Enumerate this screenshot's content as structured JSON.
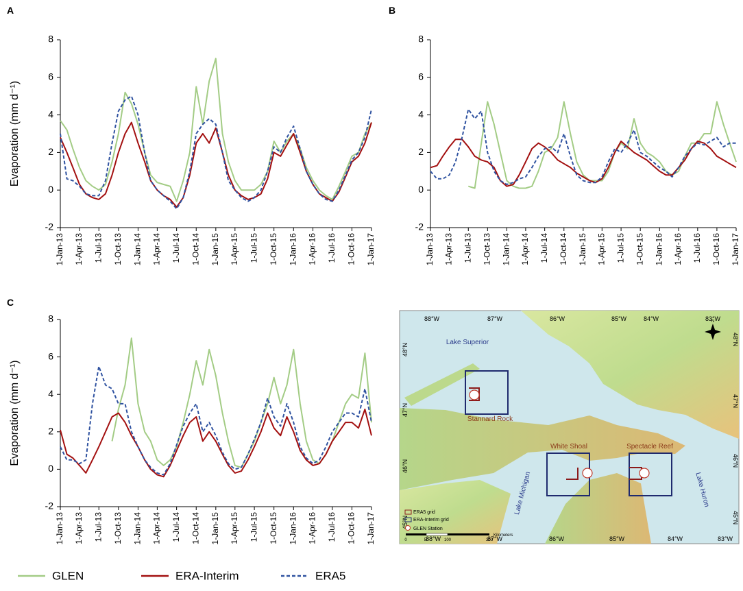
{
  "chart_data": [
    {
      "type": "line",
      "panel_label": "A",
      "ylabel": "Evaporation (mm d⁻¹)",
      "x": [
        "2013-01-01",
        "2013-02-01",
        "2013-03-01",
        "2013-04-01",
        "2013-05-01",
        "2013-06-01",
        "2013-07-01",
        "2013-08-01",
        "2013-09-01",
        "2013-10-01",
        "2013-11-01",
        "2013-12-01",
        "2014-01-01",
        "2014-02-01",
        "2014-03-01",
        "2014-04-01",
        "2014-05-01",
        "2014-06-01",
        "2014-07-01",
        "2014-08-01",
        "2014-09-01",
        "2014-10-01",
        "2014-11-01",
        "2014-12-01",
        "2015-01-01",
        "2015-02-01",
        "2015-03-01",
        "2015-04-01",
        "2015-05-01",
        "2015-06-01",
        "2015-07-01",
        "2015-08-01",
        "2015-09-01",
        "2015-10-01",
        "2015-11-01",
        "2015-12-01",
        "2016-01-01",
        "2016-02-01",
        "2016-03-01",
        "2016-04-01",
        "2016-05-01",
        "2016-06-01",
        "2016-07-01",
        "2016-08-01",
        "2016-09-01",
        "2016-10-01",
        "2016-11-01",
        "2016-12-01",
        "2017-01-01"
      ],
      "xlim": [
        "2013-01-01",
        "2017-01-01"
      ],
      "xticks": [
        {
          "value": "2013-01-01",
          "label": "1-Jan-13"
        },
        {
          "value": "2013-04-01",
          "label": "1-Apr-13"
        },
        {
          "value": "2013-07-01",
          "label": "1-Jul-13"
        },
        {
          "value": "2013-10-01",
          "label": "1-Oct-13"
        },
        {
          "value": "2014-01-01",
          "label": "1-Jan-14"
        },
        {
          "value": "2014-04-01",
          "label": "1-Apr-14"
        },
        {
          "value": "2014-07-01",
          "label": "1-Jul-14"
        },
        {
          "value": "2014-10-01",
          "label": "1-Oct-14"
        },
        {
          "value": "2015-01-01",
          "label": "1-Jan-15"
        },
        {
          "value": "2015-04-01",
          "label": "1-Apr-15"
        },
        {
          "value": "2015-07-01",
          "label": "1-Jul-15"
        },
        {
          "value": "2015-10-01",
          "label": "1-Oct-15"
        },
        {
          "value": "2016-01-01",
          "label": "1-Jan-16"
        },
        {
          "value": "2016-04-01",
          "label": "1-Apr-16"
        },
        {
          "value": "2016-07-01",
          "label": "1-Jul-16"
        },
        {
          "value": "2016-10-01",
          "label": "1-Oct-16"
        },
        {
          "value": "2017-01-01",
          "label": "1-Jan-17"
        }
      ],
      "ylim": [
        -2,
        8
      ],
      "yticks": [
        -2,
        0,
        2,
        4,
        6,
        8
      ],
      "series": [
        {
          "name": "GLEN",
          "color": "#a3cc85",
          "dash": false,
          "values": [
            3.7,
            3.2,
            2.2,
            1.2,
            0.5,
            0.2,
            0.0,
            0.3,
            1.5,
            3.0,
            5.2,
            4.6,
            3.5,
            2.0,
            0.8,
            0.4,
            0.3,
            0.2,
            -0.6,
            0.5,
            2.0,
            5.5,
            3.5,
            5.8,
            7.0,
            3.0,
            1.5,
            0.5,
            0.0,
            0.0,
            0.0,
            0.3,
            1.0,
            2.6,
            2.0,
            2.6,
            3.0,
            2.2,
            1.2,
            0.5,
            0.0,
            -0.3,
            -0.5,
            0.2,
            1.0,
            1.8,
            2.0,
            3.0,
            3.6
          ]
        },
        {
          "name": "ERA-Interim",
          "color": "#a31010",
          "dash": false,
          "values": [
            2.8,
            2.0,
            1.2,
            0.3,
            -0.2,
            -0.4,
            -0.5,
            -0.2,
            0.8,
            2.0,
            3.0,
            3.6,
            2.5,
            1.5,
            0.5,
            0.0,
            -0.3,
            -0.5,
            -0.9,
            -0.4,
            0.8,
            2.5,
            3.0,
            2.5,
            3.3,
            2.0,
            0.8,
            0.0,
            -0.3,
            -0.5,
            -0.4,
            -0.2,
            0.6,
            2.0,
            1.8,
            2.4,
            3.0,
            2.0,
            1.0,
            0.3,
            -0.2,
            -0.4,
            -0.6,
            -0.1,
            0.7,
            1.5,
            1.8,
            2.5,
            3.6
          ]
        },
        {
          "name": "ERA5",
          "color": "#2f52a0",
          "dash": true,
          "values": [
            3.0,
            0.6,
            0.5,
            0.2,
            -0.2,
            -0.3,
            -0.3,
            0.5,
            2.5,
            4.2,
            4.8,
            5.0,
            4.0,
            2.0,
            0.5,
            0.0,
            -0.3,
            -0.6,
            -1.0,
            -0.4,
            1.0,
            3.0,
            3.5,
            3.8,
            3.5,
            2.0,
            0.5,
            0.0,
            -0.4,
            -0.6,
            -0.4,
            0.0,
            1.0,
            2.3,
            2.0,
            2.8,
            3.4,
            2.2,
            1.0,
            0.3,
            -0.2,
            -0.5,
            -0.6,
            0.0,
            0.8,
            1.6,
            2.0,
            2.8,
            4.3
          ]
        }
      ]
    },
    {
      "type": "line",
      "panel_label": "B",
      "x": [
        "2013-01-01",
        "2013-02-01",
        "2013-03-01",
        "2013-04-01",
        "2013-05-01",
        "2013-06-01",
        "2013-07-01",
        "2013-08-01",
        "2013-09-01",
        "2013-10-01",
        "2013-11-01",
        "2013-12-01",
        "2014-01-01",
        "2014-02-01",
        "2014-03-01",
        "2014-04-01",
        "2014-05-01",
        "2014-06-01",
        "2014-07-01",
        "2014-08-01",
        "2014-09-01",
        "2014-10-01",
        "2014-11-01",
        "2014-12-01",
        "2015-01-01",
        "2015-02-01",
        "2015-03-01",
        "2015-04-01",
        "2015-05-01",
        "2015-06-01",
        "2015-07-01",
        "2015-08-01",
        "2015-09-01",
        "2015-10-01",
        "2015-11-01",
        "2015-12-01",
        "2016-01-01",
        "2016-02-01",
        "2016-03-01",
        "2016-04-01",
        "2016-05-01",
        "2016-06-01",
        "2016-07-01",
        "2016-08-01",
        "2016-09-01",
        "2016-10-01",
        "2016-11-01",
        "2016-12-01",
        "2017-01-01"
      ],
      "xlim": [
        "2013-01-01",
        "2017-01-01"
      ],
      "xticks": [
        {
          "value": "2013-01-01",
          "label": "1-Jan-13"
        },
        {
          "value": "2013-04-01",
          "label": "1-Apr-13"
        },
        {
          "value": "2013-07-01",
          "label": "1-Jul-13"
        },
        {
          "value": "2013-10-01",
          "label": "1-Oct-13"
        },
        {
          "value": "2014-01-01",
          "label": "1-Jan-14"
        },
        {
          "value": "2014-04-01",
          "label": "1-Apr-14"
        },
        {
          "value": "2014-07-01",
          "label": "1-Jul-14"
        },
        {
          "value": "2014-10-01",
          "label": "1-Oct-14"
        },
        {
          "value": "2015-01-01",
          "label": "1-Jan-15"
        },
        {
          "value": "2015-04-01",
          "label": "1-Apr-15"
        },
        {
          "value": "2015-07-01",
          "label": "1-Jul-15"
        },
        {
          "value": "2015-10-01",
          "label": "1-Oct-15"
        },
        {
          "value": "2016-01-01",
          "label": "1-Jan-16"
        },
        {
          "value": "2016-04-01",
          "label": "1-Apr-16"
        },
        {
          "value": "2016-07-01",
          "label": "1-Jul-16"
        },
        {
          "value": "2016-10-01",
          "label": "1-Oct-16"
        },
        {
          "value": "2017-01-01",
          "label": "1-Jan-17"
        }
      ],
      "ylim": [
        -2,
        8
      ],
      "yticks": [
        -2,
        0,
        2,
        4,
        6,
        8
      ],
      "series": [
        {
          "color": "#a3cc85",
          "dash": false,
          "values": [
            null,
            null,
            null,
            null,
            null,
            null,
            0.2,
            0.1,
            2.5,
            4.7,
            3.5,
            2.0,
            0.5,
            0.2,
            0.1,
            0.1,
            0.2,
            1.0,
            2.0,
            2.2,
            2.8,
            4.7,
            3.0,
            1.5,
            0.8,
            0.5,
            0.5,
            0.5,
            1.0,
            2.0,
            2.5,
            2.2,
            3.8,
            2.5,
            2.0,
            1.8,
            1.5,
            1.0,
            0.8,
            1.0,
            1.8,
            2.5,
            2.5,
            3.0,
            3.0,
            4.7,
            3.5,
            2.5,
            1.5
          ]
        },
        {
          "color": "#a31010",
          "dash": false,
          "values": [
            1.2,
            1.3,
            1.8,
            2.3,
            2.7,
            2.7,
            2.3,
            1.8,
            1.6,
            1.5,
            1.2,
            0.5,
            0.2,
            0.3,
            0.8,
            1.5,
            2.2,
            2.5,
            2.3,
            2.0,
            1.6,
            1.4,
            1.2,
            0.9,
            0.7,
            0.5,
            0.4,
            0.6,
            1.2,
            2.0,
            2.6,
            2.3,
            2.0,
            1.8,
            1.6,
            1.3,
            1.0,
            0.8,
            0.8,
            1.2,
            1.6,
            2.2,
            2.6,
            2.5,
            2.2,
            1.8,
            1.6,
            1.4,
            1.2
          ]
        },
        {
          "color": "#2f52a0",
          "dash": true,
          "values": [
            1.0,
            0.6,
            0.6,
            0.8,
            1.5,
            2.8,
            4.3,
            3.8,
            4.2,
            2.0,
            1.0,
            0.5,
            0.3,
            0.4,
            0.6,
            0.7,
            1.2,
            1.8,
            2.2,
            2.3,
            2.0,
            3.0,
            1.8,
            0.8,
            0.5,
            0.4,
            0.4,
            0.7,
            1.5,
            2.2,
            2.0,
            2.5,
            3.2,
            2.0,
            1.8,
            1.5,
            1.2,
            1.0,
            0.7,
            1.2,
            1.8,
            2.2,
            2.5,
            2.4,
            2.6,
            2.8,
            2.3,
            2.5,
            2.5
          ]
        }
      ]
    },
    {
      "type": "line",
      "panel_label": "C",
      "ylabel": "Evaporation (mm d⁻¹)",
      "x": [
        "2013-01-01",
        "2013-02-01",
        "2013-03-01",
        "2013-04-01",
        "2013-05-01",
        "2013-06-01",
        "2013-07-01",
        "2013-08-01",
        "2013-09-01",
        "2013-10-01",
        "2013-11-01",
        "2013-12-01",
        "2014-01-01",
        "2014-02-01",
        "2014-03-01",
        "2014-04-01",
        "2014-05-01",
        "2014-06-01",
        "2014-07-01",
        "2014-08-01",
        "2014-09-01",
        "2014-10-01",
        "2014-11-01",
        "2014-12-01",
        "2015-01-01",
        "2015-02-01",
        "2015-03-01",
        "2015-04-01",
        "2015-05-01",
        "2015-06-01",
        "2015-07-01",
        "2015-08-01",
        "2015-09-01",
        "2015-10-01",
        "2015-11-01",
        "2015-12-01",
        "2016-01-01",
        "2016-02-01",
        "2016-03-01",
        "2016-04-01",
        "2016-05-01",
        "2016-06-01",
        "2016-07-01",
        "2016-08-01",
        "2016-09-01",
        "2016-10-01",
        "2016-11-01",
        "2016-12-01",
        "2017-01-01"
      ],
      "xlim": [
        "2013-01-01",
        "2017-01-01"
      ],
      "xticks": [
        {
          "value": "2013-01-01",
          "label": "1-Jan-13"
        },
        {
          "value": "2013-04-01",
          "label": "1-Apr-13"
        },
        {
          "value": "2013-07-01",
          "label": "1-Jul-13"
        },
        {
          "value": "2013-10-01",
          "label": "1-Oct-13"
        },
        {
          "value": "2014-01-01",
          "label": "1-Jan-14"
        },
        {
          "value": "2014-04-01",
          "label": "1-Apr-14"
        },
        {
          "value": "2014-07-01",
          "label": "1-Jul-14"
        },
        {
          "value": "2014-10-01",
          "label": "1-Oct-14"
        },
        {
          "value": "2015-01-01",
          "label": "1-Jan-15"
        },
        {
          "value": "2015-04-01",
          "label": "1-Apr-15"
        },
        {
          "value": "2015-07-01",
          "label": "1-Jul-15"
        },
        {
          "value": "2015-10-01",
          "label": "1-Oct-15"
        },
        {
          "value": "2016-01-01",
          "label": "1-Jan-16"
        },
        {
          "value": "2016-04-01",
          "label": "1-Apr-16"
        },
        {
          "value": "2016-07-01",
          "label": "1-Jul-16"
        },
        {
          "value": "2016-10-01",
          "label": "1-Oct-16"
        },
        {
          "value": "2017-01-01",
          "label": "1-Jan-17"
        }
      ],
      "ylim": [
        -2,
        8
      ],
      "yticks": [
        -2,
        0,
        2,
        4,
        6,
        8
      ],
      "series": [
        {
          "color": "#a3cc85",
          "dash": false,
          "values": [
            null,
            null,
            null,
            null,
            null,
            null,
            null,
            null,
            1.5,
            3.2,
            4.5,
            7.0,
            3.5,
            2.0,
            1.5,
            0.5,
            0.2,
            0.5,
            1.2,
            2.5,
            4.0,
            5.8,
            4.5,
            6.4,
            5.0,
            3.0,
            1.5,
            0.2,
            0.1,
            0.8,
            1.5,
            2.5,
            3.5,
            4.9,
            3.5,
            4.5,
            6.4,
            3.5,
            1.5,
            0.5,
            0.3,
            0.8,
            1.5,
            2.5,
            3.5,
            4.0,
            3.8,
            6.2,
            2.5
          ]
        },
        {
          "color": "#a31010",
          "dash": false,
          "values": [
            2.1,
            0.8,
            0.6,
            0.2,
            -0.2,
            0.5,
            1.2,
            2.0,
            2.8,
            3.0,
            2.5,
            1.8,
            1.2,
            0.5,
            0.0,
            -0.3,
            -0.4,
            0.2,
            1.0,
            1.8,
            2.5,
            2.8,
            1.5,
            2.0,
            1.5,
            0.8,
            0.2,
            -0.2,
            -0.1,
            0.5,
            1.2,
            2.0,
            3.0,
            2.2,
            1.8,
            2.8,
            2.0,
            1.0,
            0.5,
            0.2,
            0.3,
            0.8,
            1.5,
            2.0,
            2.5,
            2.5,
            2.2,
            3.2,
            1.8
          ]
        },
        {
          "color": "#2f52a0",
          "dash": true,
          "values": [
            1.2,
            0.5,
            0.5,
            0.3,
            0.5,
            3.5,
            5.5,
            4.5,
            4.3,
            3.5,
            3.5,
            2.0,
            1.2,
            0.5,
            0.1,
            -0.2,
            -0.3,
            0.3,
            1.3,
            2.3,
            3.0,
            3.5,
            2.0,
            2.5,
            1.8,
            0.9,
            0.3,
            0.0,
            0.1,
            0.8,
            1.6,
            2.5,
            3.8,
            2.8,
            2.3,
            3.5,
            2.5,
            1.2,
            0.6,
            0.3,
            0.5,
            1.2,
            2.0,
            2.5,
            3.0,
            3.0,
            2.8,
            4.3,
            2.5
          ]
        }
      ]
    }
  ],
  "map": {
    "lon_top": [
      "88°W",
      "87°W",
      "86°W",
      "85°W",
      "84°W",
      "83°W"
    ],
    "lon_bottom": [
      "88°W",
      "87°W",
      "86°W",
      "85°W",
      "84°W",
      "83°W"
    ],
    "lat_left": [
      "48°N",
      "47°N",
      "46°N",
      "45°N"
    ],
    "lat_right": [
      "48°N",
      "47°N",
      "46°N",
      "45°N"
    ],
    "lakes": [
      "Lake Superior",
      "Lake Michigan",
      "Lake Huron"
    ],
    "stations": [
      "Stannard Rock",
      "White Shoal",
      "Spectacle Reef"
    ],
    "legend": [
      "ERA5 grid",
      "ERA-Interim grid",
      "GLEN Station"
    ],
    "scale": [
      "0",
      "50",
      "100",
      "200",
      "Kilometers"
    ],
    "compass": "N"
  }
}
